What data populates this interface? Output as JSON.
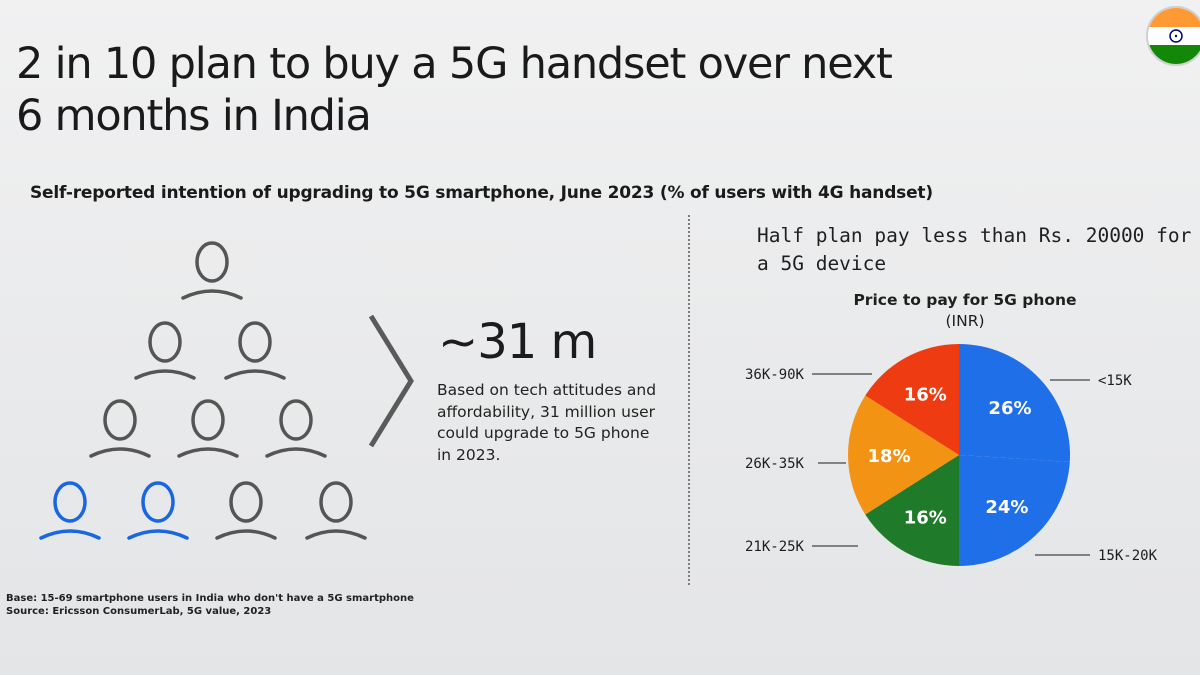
{
  "slide": {
    "title": "2 in 10 plan to buy a 5G handset over next 6 months in India",
    "subtitle": "Self-reported intention of upgrading to 5G smartphone, June 2023 (% of users with 4G handset)",
    "flag_icon": "india-flag-icon"
  },
  "left_panel": {
    "people_total": 10,
    "people_highlighted": 2,
    "person_icon": "person-icon",
    "highlight_color": "#1a66e0",
    "default_color": "#555555",
    "big_number": "~31 m",
    "description": "Based on tech attitudes and affordability, 31 million user could upgrade to 5G phone in 2023."
  },
  "right_panel": {
    "headline": "Half plan pay less than Rs. 20000 for a 5G device"
  },
  "chart_data": {
    "type": "pie",
    "title": "Price to pay for 5G phone",
    "subtitle": "(INR)",
    "slices": [
      {
        "label": "<15K",
        "value": 26,
        "value_label": "26%",
        "color": "#1f6fe8"
      },
      {
        "label": "15K-20K",
        "value": 24,
        "value_label": "24%",
        "color": "#1f6fe8"
      },
      {
        "label": "21K-25K",
        "value": 16,
        "value_label": "16%",
        "color": "#1f7a2a"
      },
      {
        "label": "26K-35K",
        "value": 18,
        "value_label": "18%",
        "color": "#f39314"
      },
      {
        "label": "36K-90K",
        "value": 16,
        "value_label": "16%",
        "color": "#ee3b12"
      }
    ],
    "start": "12 o'clock, clockwise"
  },
  "footnote": {
    "base": "Base: 15-69 smartphone users in India who don't have a 5G smartphone",
    "source": "Source: Ericsson ConsumerLab, 5G value, 2023"
  }
}
